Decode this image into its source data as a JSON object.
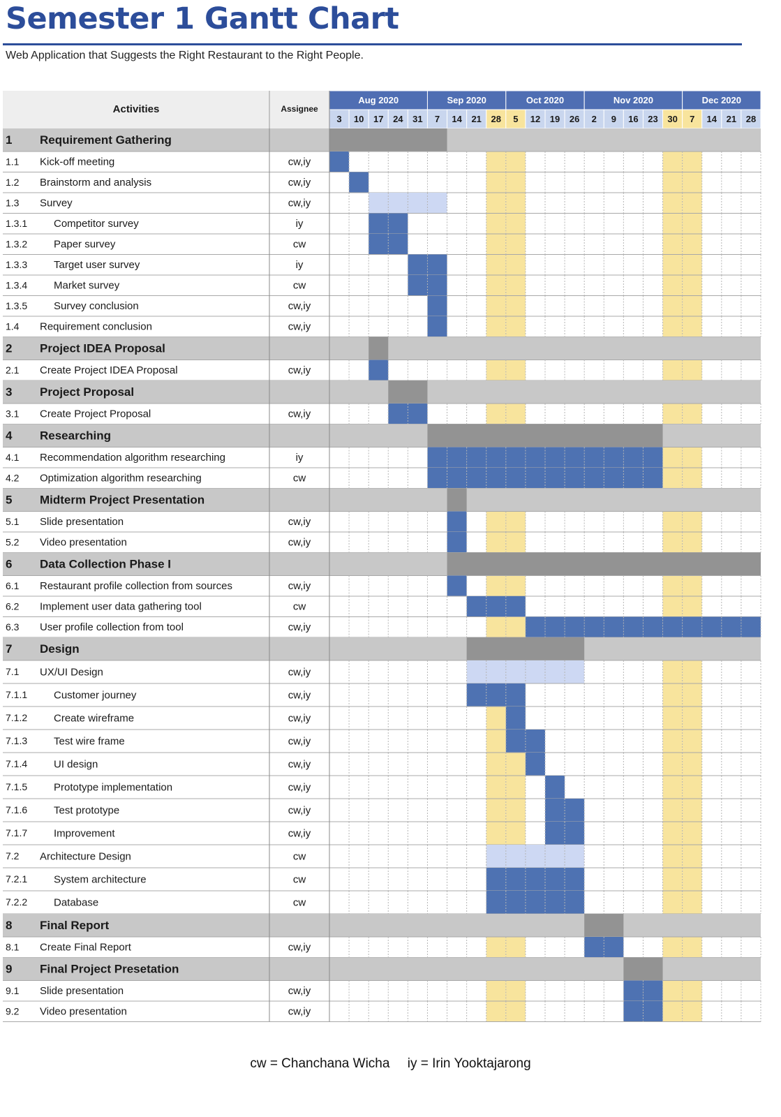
{
  "page": {
    "title": "Semester 1 Gantt Chart",
    "subtitle": "Web Application that Suggests the Right Restaurant to the Right People."
  },
  "colors": {
    "brand": "#2c4d9a",
    "month_header": "#4f6eb3",
    "week_header": "#c9d6ee",
    "group_row": "#c8c8c8",
    "group_bar": "#939393",
    "task_bar": "#4e72b2",
    "parent_bar": "#cdd8f3",
    "highlight_week": "#f8e49d",
    "header_cell": "#eeeeee"
  },
  "chart_data": {
    "type": "gantt",
    "columns": {
      "activities": "Activities",
      "assignee": "Assignee"
    },
    "months": [
      {
        "label": "Aug 2020",
        "weeks": 5
      },
      {
        "label": "Sep 2020",
        "weeks": 4
      },
      {
        "label": "Oct 2020",
        "weeks": 4
      },
      {
        "label": "Nov 2020",
        "weeks": 5
      },
      {
        "label": "Dec 2020",
        "weeks": 4
      }
    ],
    "weeks": [
      "3",
      "10",
      "17",
      "24",
      "31",
      "7",
      "14",
      "21",
      "28",
      "5",
      "12",
      "19",
      "26",
      "2",
      "9",
      "16",
      "23",
      "30",
      "7",
      "14",
      "21",
      "28"
    ],
    "highlight_weeks": [
      8,
      9,
      17,
      18
    ],
    "rows": [
      {
        "type": "group",
        "id": "1",
        "name": "Requirement Gathering",
        "start": 0,
        "end": 6
      },
      {
        "type": "task",
        "id": "1.1",
        "name": "Kick-off meeting",
        "assignee": "cw,iy",
        "start": 0,
        "end": 1
      },
      {
        "type": "task",
        "id": "1.2",
        "name": "Brainstorm and analysis",
        "assignee": "cw,iy",
        "start": 1,
        "end": 2
      },
      {
        "type": "task",
        "id": "1.3",
        "name": "Survey",
        "assignee": "cw,iy",
        "start": 2,
        "end": 6,
        "parent": true
      },
      {
        "type": "task",
        "id": "1.3.1",
        "name": "Competitor survey",
        "assignee": "iy",
        "start": 2,
        "end": 4,
        "indent": true
      },
      {
        "type": "task",
        "id": "1.3.2",
        "name": "Paper survey",
        "assignee": "cw",
        "start": 2,
        "end": 4,
        "indent": true
      },
      {
        "type": "task",
        "id": "1.3.3",
        "name": "Target user survey",
        "assignee": "iy",
        "start": 4,
        "end": 6,
        "indent": true
      },
      {
        "type": "task",
        "id": "1.3.4",
        "name": "Market survey",
        "assignee": "cw",
        "start": 4,
        "end": 6,
        "indent": true
      },
      {
        "type": "task",
        "id": "1.3.5",
        "name": "Survey conclusion",
        "assignee": "cw,iy",
        "start": 5,
        "end": 6,
        "indent": true
      },
      {
        "type": "task",
        "id": "1.4",
        "name": "Requirement conclusion",
        "assignee": "cw,iy",
        "start": 5,
        "end": 6
      },
      {
        "type": "group",
        "id": "2",
        "name": "Project IDEA Proposal",
        "start": 2,
        "end": 3
      },
      {
        "type": "task",
        "id": "2.1",
        "name": "Create Project IDEA Proposal",
        "assignee": "cw,iy",
        "start": 2,
        "end": 3
      },
      {
        "type": "group",
        "id": "3",
        "name": "Project Proposal",
        "start": 3,
        "end": 5
      },
      {
        "type": "task",
        "id": "3.1",
        "name": "Create Project Proposal",
        "assignee": "cw,iy",
        "start": 3,
        "end": 5
      },
      {
        "type": "group",
        "id": "4",
        "name": "Researching",
        "start": 5,
        "end": 17
      },
      {
        "type": "task",
        "id": "4.1",
        "name": "Recommendation algorithm researching",
        "assignee": "iy",
        "start": 5,
        "end": 17
      },
      {
        "type": "task",
        "id": "4.2",
        "name": "Optimization algorithm researching",
        "assignee": "cw",
        "start": 5,
        "end": 17
      },
      {
        "type": "group",
        "id": "5",
        "name": "Midterm Project Presentation",
        "start": 6,
        "end": 7
      },
      {
        "type": "task",
        "id": "5.1",
        "name": "Slide presentation",
        "assignee": "cw,iy",
        "start": 6,
        "end": 7
      },
      {
        "type": "task",
        "id": "5.2",
        "name": "Video presentation",
        "assignee": "cw,iy",
        "start": 6,
        "end": 7
      },
      {
        "type": "group",
        "id": "6",
        "name": "Data Collection Phase I",
        "start": 6,
        "end": 22
      },
      {
        "type": "task",
        "id": "6.1",
        "name": "Restaurant profile collection from sources",
        "assignee": "cw,iy",
        "start": 6,
        "end": 7
      },
      {
        "type": "task",
        "id": "6.2",
        "name": "Implement user data gathering tool",
        "assignee": "cw",
        "start": 7,
        "end": 10
      },
      {
        "type": "task",
        "id": "6.3",
        "name": "User profile collection from tool",
        "assignee": "cw,iy",
        "start": 10,
        "end": 22
      },
      {
        "type": "group",
        "id": "7",
        "name": "Design",
        "start": 7,
        "end": 13
      },
      {
        "type": "task",
        "id": "7.1",
        "name": "UX/UI Design",
        "assignee": "cw,iy",
        "start": 7,
        "end": 13,
        "parent": true
      },
      {
        "type": "task",
        "id": "7.1.1",
        "name": "Customer journey",
        "assignee": "cw,iy",
        "start": 7,
        "end": 10,
        "indent": true
      },
      {
        "type": "task",
        "id": "7.1.2",
        "name": "Create wireframe",
        "assignee": "cw,iy",
        "start": 9,
        "end": 10,
        "indent": true
      },
      {
        "type": "task",
        "id": "7.1.3",
        "name": "Test wire frame",
        "assignee": "cw,iy",
        "start": 9,
        "end": 11,
        "indent": true
      },
      {
        "type": "task",
        "id": "7.1.4",
        "name": "UI design",
        "assignee": "cw,iy",
        "start": 10,
        "end": 11,
        "indent": true
      },
      {
        "type": "task",
        "id": "7.1.5",
        "name": "Prototype implementation",
        "assignee": "cw,iy",
        "start": 11,
        "end": 12,
        "indent": true
      },
      {
        "type": "task",
        "id": "7.1.6",
        "name": "Test prototype",
        "assignee": "cw,iy",
        "start": 11,
        "end": 13,
        "indent": true
      },
      {
        "type": "task",
        "id": "7.1.7",
        "name": "Improvement",
        "assignee": "cw,iy",
        "start": 11,
        "end": 13,
        "indent": true
      },
      {
        "type": "task",
        "id": "7.2",
        "name": "Architecture Design",
        "assignee": "cw",
        "start": 8,
        "end": 13,
        "parent": true
      },
      {
        "type": "task",
        "id": "7.2.1",
        "name": "System architecture",
        "assignee": "cw",
        "start": 8,
        "end": 13,
        "indent": true
      },
      {
        "type": "task",
        "id": "7.2.2",
        "name": "Database",
        "assignee": "cw",
        "start": 8,
        "end": 13,
        "indent": true
      },
      {
        "type": "group",
        "id": "8",
        "name": "Final Report",
        "start": 13,
        "end": 15
      },
      {
        "type": "task",
        "id": "8.1",
        "name": "Create Final Report",
        "assignee": "cw,iy",
        "start": 13,
        "end": 15
      },
      {
        "type": "group",
        "id": "9",
        "name": "Final Project Presetation",
        "start": 15,
        "end": 17
      },
      {
        "type": "task",
        "id": "9.1",
        "name": "Slide presentation",
        "assignee": "cw,iy",
        "start": 15,
        "end": 17
      },
      {
        "type": "task",
        "id": "9.2",
        "name": "Video presentation",
        "assignee": "cw,iy",
        "start": 15,
        "end": 17
      }
    ]
  },
  "legend": {
    "cw": "cw = Chanchana Wicha",
    "iy": "iy = Irin Yooktajarong"
  }
}
